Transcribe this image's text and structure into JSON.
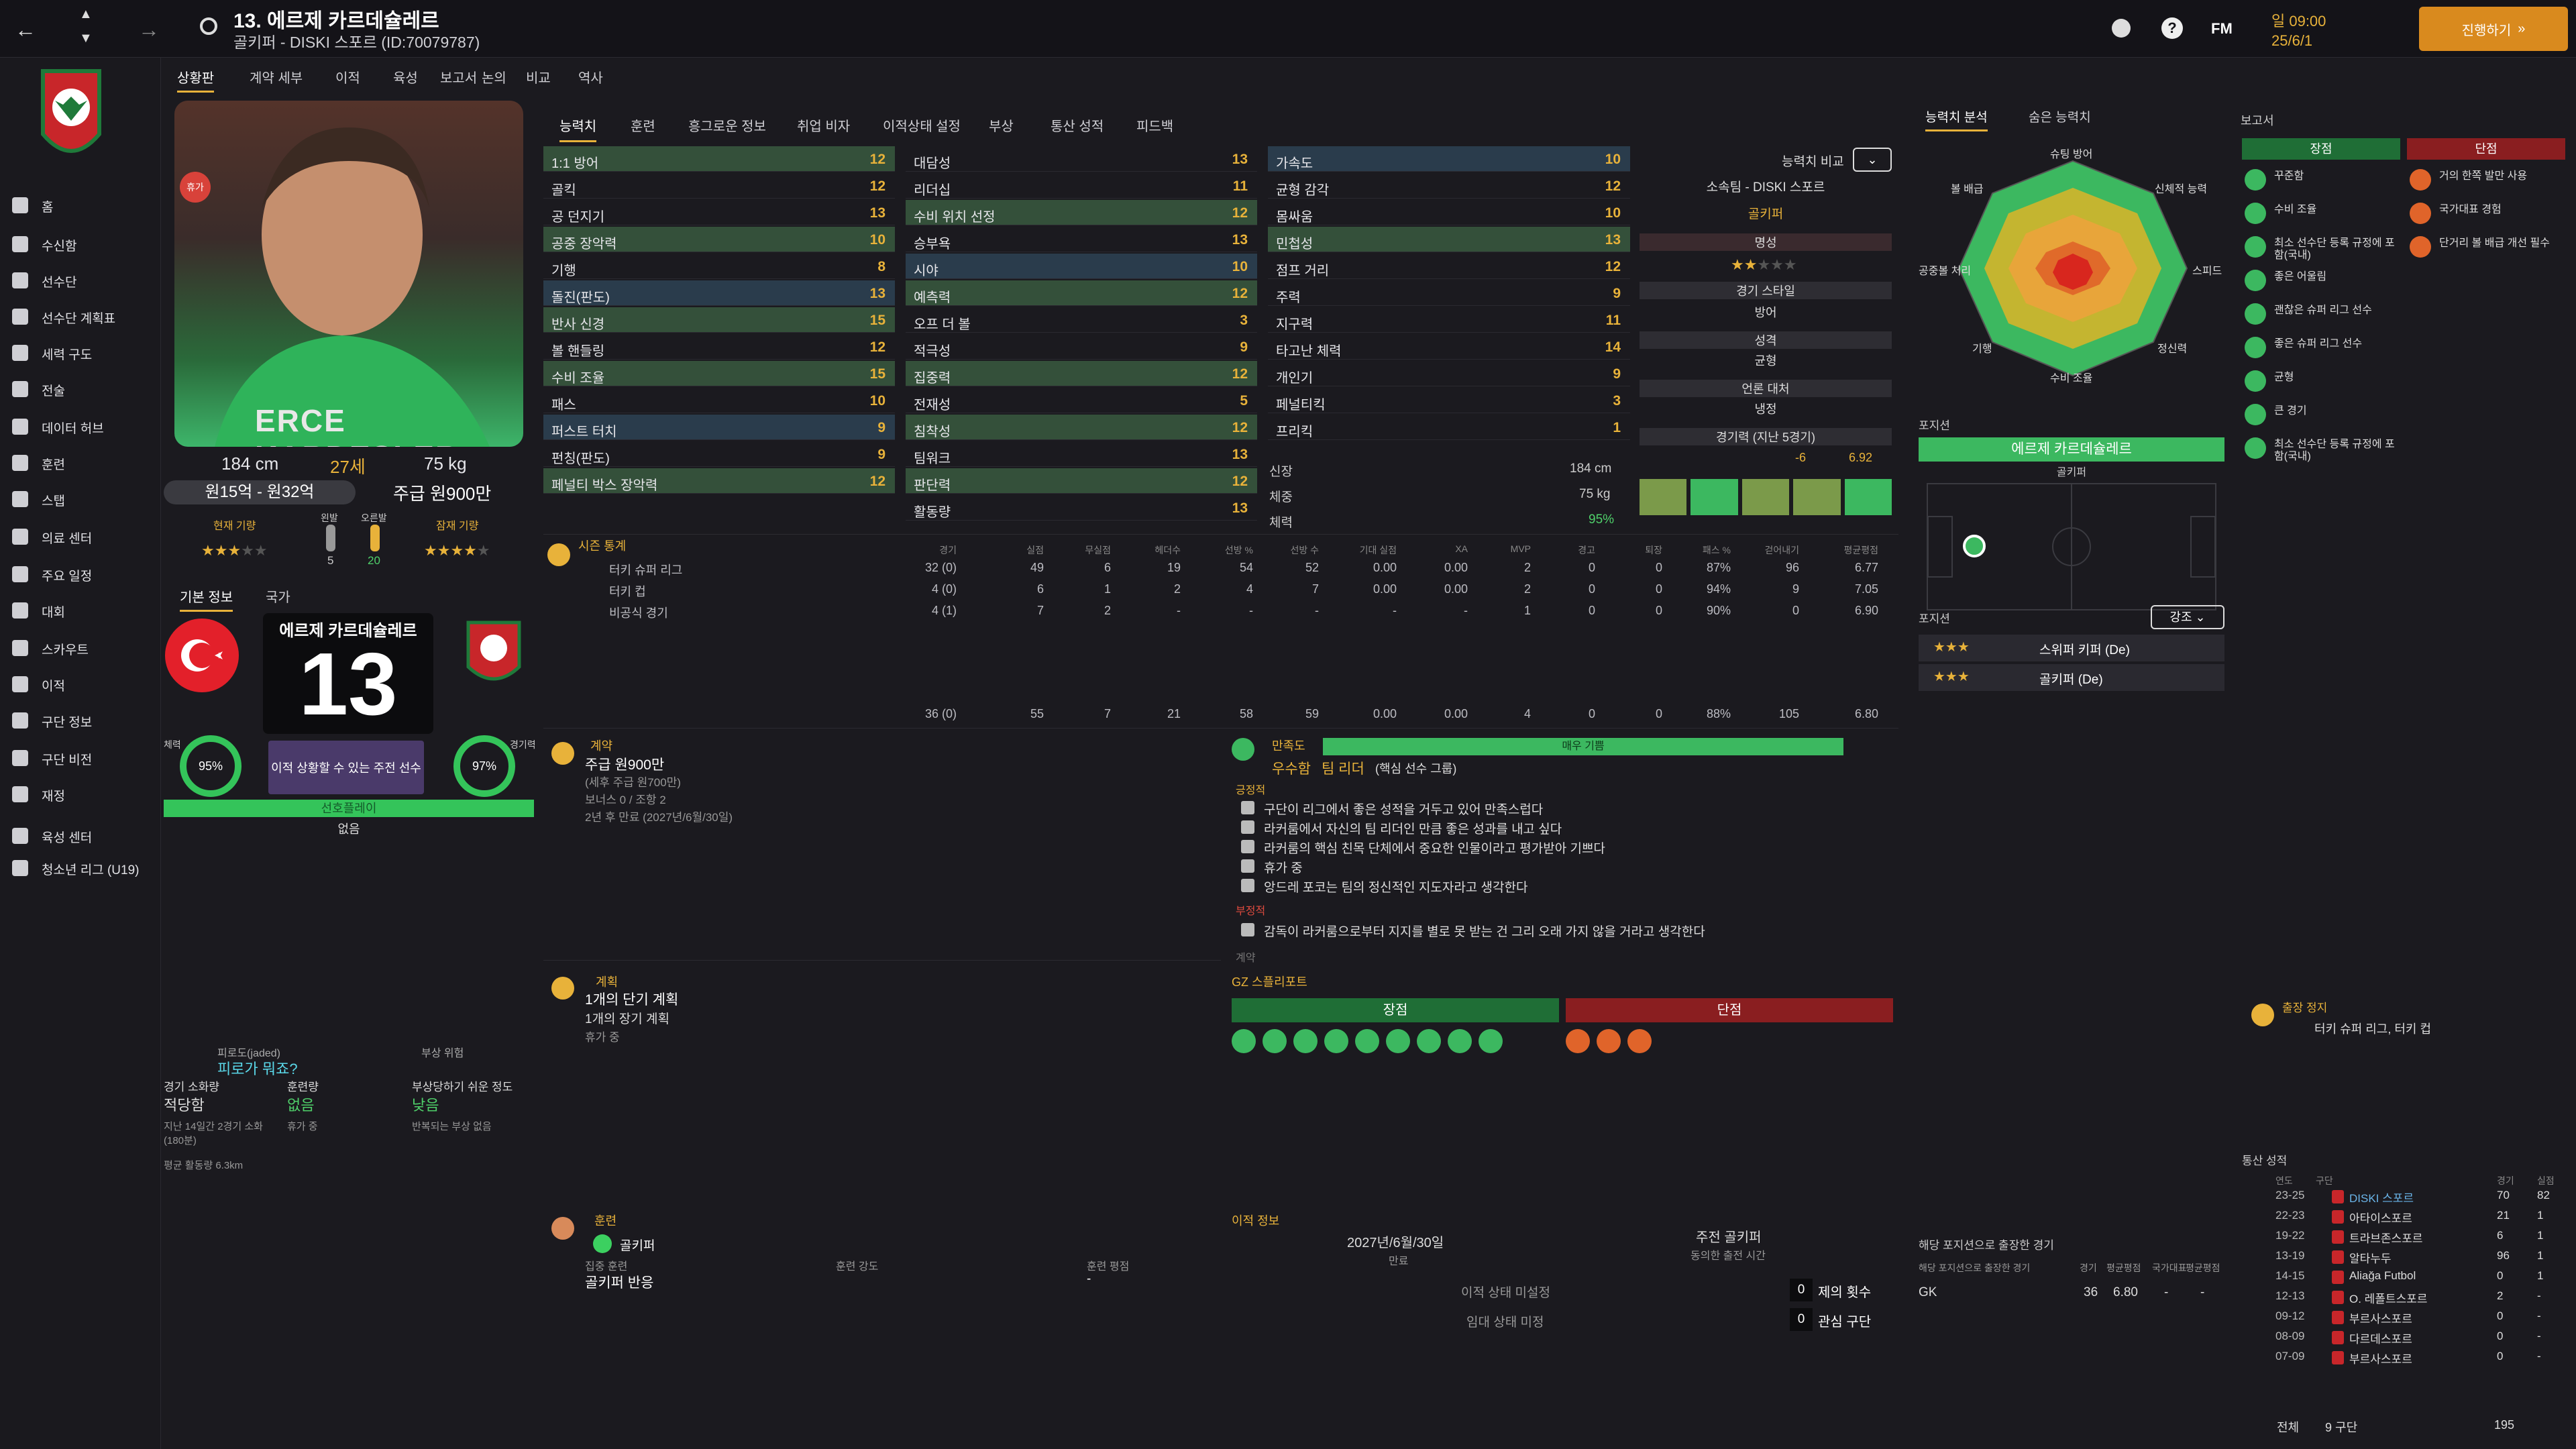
{
  "topbar": {
    "player_title": "13. 에르제 카르데슐레르",
    "player_sub": "골키퍼 - DISKI 스포르 (ID:70079787)",
    "day": "일 09:00",
    "date": "25/6/1",
    "continue_label": "진행하기",
    "fm_label": "FM"
  },
  "subnav": [
    "상황판",
    "계약 세부",
    "이적",
    "육성",
    "보고서",
    "논의",
    "비교",
    "역사"
  ],
  "sidebar": [
    "홈",
    "수신함",
    "선수단",
    "선수단 계획표",
    "세력 구도",
    "전술",
    "데이터 허브",
    "훈련",
    "스탭",
    "의료 센터",
    "주요 일정",
    "대회",
    "스카우트",
    "이적",
    "구단 정보",
    "구단 비전",
    "재정",
    "육성 센터",
    "청소년 리그 (U19)"
  ],
  "profile": {
    "kit_name": "ERCE KARDESLER",
    "height": "184 cm",
    "age": "27세",
    "weight": "75 kg",
    "value": "원15억 - 원32억",
    "wage": "주급 원900만",
    "current_ability_label": "현재 기량",
    "foot_left_label": "왼발",
    "foot_right_label": "오른발",
    "foot_left_val": "5",
    "foot_right_val": "20",
    "potential_label": "잠재 기량",
    "injury_badge": "휴가",
    "tab_basic": "기본 정보",
    "tab_nation": "국가",
    "number_name": "에르제 카르데슐레르",
    "shirt_number": "13",
    "fitness_label": "체력",
    "fitness_val": "95%",
    "sharpness_label": "경기력",
    "sharpness_val": "97%",
    "selection_text": "이적 상황할 수 있는 주전 선수",
    "rotation_label": "선호플레이",
    "rotation_val": "없음"
  },
  "fatigue": {
    "fatigue_label": "피로도(jaded)",
    "fatigue_val": "피로가 뭐죠?",
    "injury_risk_label": "부상 위험",
    "match_load_label": "경기 소화량",
    "match_load_val": "적당함",
    "training_load_label": "훈련량",
    "training_load_val": "없음",
    "injury_prone_label": "부상당하기 쉬운 정도",
    "injury_prone_val": "낮음",
    "match_load_note": "지난 14일간 2경기 소화(180분)",
    "training_load_note": "휴가 중",
    "injury_note": "반복되는 부상 없음",
    "distance_note": "평균 활동량 6.3km"
  },
  "main_tabs": [
    "능력치",
    "훈련",
    "흥그로운 정보",
    "취업 비자",
    "이적상태 설정",
    "부상",
    "통산 성적",
    "피드백"
  ],
  "attributes": {
    "col1": [
      {
        "name": "1:1 방어",
        "val": "12",
        "hl": "hl"
      },
      {
        "name": "골킥",
        "val": "12",
        "hl": ""
      },
      {
        "name": "공 던지기",
        "val": "13",
        "hl": ""
      },
      {
        "name": "공중 장악력",
        "val": "10",
        "hl": "hl"
      },
      {
        "name": "기행",
        "val": "8",
        "hl": ""
      },
      {
        "name": "돌진(판도)",
        "val": "13",
        "hl": "hl2"
      },
      {
        "name": "반사 신경",
        "val": "15",
        "hl": "hl"
      },
      {
        "name": "볼 핸들링",
        "val": "12",
        "hl": ""
      },
      {
        "name": "수비 조율",
        "val": "15",
        "hl": "hl"
      },
      {
        "name": "패스",
        "val": "10",
        "hl": ""
      },
      {
        "name": "퍼스트 터치",
        "val": "9",
        "hl": "hl2"
      },
      {
        "name": "펀칭(판도)",
        "val": "9",
        "hl": ""
      },
      {
        "name": "페널티 박스 장악력",
        "val": "12",
        "hl": "hl"
      }
    ],
    "col2": [
      {
        "name": "대담성",
        "val": "13",
        "hl": ""
      },
      {
        "name": "리더십",
        "val": "11",
        "hl": ""
      },
      {
        "name": "수비 위치 선정",
        "val": "12",
        "hl": "hl"
      },
      {
        "name": "승부욕",
        "val": "13",
        "hl": ""
      },
      {
        "name": "시야",
        "val": "10",
        "hl": "hl2"
      },
      {
        "name": "예측력",
        "val": "12",
        "hl": "hl"
      },
      {
        "name": "오프 더 볼",
        "val": "3",
        "hl": ""
      },
      {
        "name": "적극성",
        "val": "9",
        "hl": ""
      },
      {
        "name": "집중력",
        "val": "12",
        "hl": "hl"
      },
      {
        "name": "전재성",
        "val": "5",
        "hl": ""
      },
      {
        "name": "침착성",
        "val": "12",
        "hl": "hl"
      },
      {
        "name": "팀워크",
        "val": "13",
        "hl": ""
      },
      {
        "name": "판단력",
        "val": "12",
        "hl": "hl"
      },
      {
        "name": "활동량",
        "val": "13",
        "hl": ""
      }
    ],
    "col3": [
      {
        "name": "가속도",
        "val": "10",
        "hl": "hl2"
      },
      {
        "name": "균형 감각",
        "val": "12",
        "hl": ""
      },
      {
        "name": "몸싸움",
        "val": "10",
        "hl": ""
      },
      {
        "name": "민첩성",
        "val": "13",
        "hl": "hl"
      },
      {
        "name": "점프 거리",
        "val": "12",
        "hl": ""
      },
      {
        "name": "주력",
        "val": "9",
        "hl": ""
      },
      {
        "name": "지구력",
        "val": "11",
        "hl": ""
      },
      {
        "name": "타고난 체력",
        "val": "14",
        "hl": ""
      },
      {
        "name": "개인기",
        "val": "9",
        "hl": ""
      },
      {
        "name": "페널티킥",
        "val": "3",
        "hl": ""
      },
      {
        "name": "프리킥",
        "val": "1",
        "hl": ""
      }
    ],
    "height_label": "신장",
    "height_val": "184 cm",
    "weight_label": "체중",
    "weight_val": "75 kg",
    "fitness_label": "체력",
    "fitness_val": "95%"
  },
  "compare": {
    "title": "능력치 비교",
    "club": "소속팀 - DISKI 스포르",
    "position": "골키퍼",
    "fame_label": "명성",
    "style_label": "경기 스타일",
    "style_val": "방어",
    "personality_label": "성격",
    "personality_val": "균형",
    "media_label": "언론 대처",
    "media_val": "냉정",
    "form_label": "경기력 (지난 5경기)",
    "rating_a": "-6",
    "rating_b": "6.92"
  },
  "season": {
    "title": "시즌 통계",
    "headers": [
      "경기",
      "실점",
      "무실점",
      "헤더수",
      "선방 %",
      "선방 수",
      "기대 실점",
      "XA",
      "MVP",
      "경고",
      "퇴장",
      "패스 %",
      "걷어내기",
      "평균평점"
    ],
    "rows": [
      {
        "name": "터키 슈퍼 리그",
        "vals": [
          "32 (0)",
          "49",
          "6",
          "19",
          "54",
          "52",
          "0.00",
          "0.00",
          "2",
          "0",
          "0",
          "87%",
          "96",
          "6.77"
        ]
      },
      {
        "name": "터키 컵",
        "vals": [
          "4 (0)",
          "6",
          "1",
          "2",
          "4",
          "7",
          "0.00",
          "0.00",
          "2",
          "0",
          "0",
          "94%",
          "9",
          "7.05"
        ]
      },
      {
        "name": "비공식 경기",
        "vals": [
          "4 (1)",
          "7",
          "2",
          "-",
          "-",
          "-",
          "-",
          "-",
          "1",
          "0",
          "0",
          "90%",
          "0",
          "6.90"
        ]
      }
    ],
    "total": [
      "36 (0)",
      "55",
      "7",
      "21",
      "58",
      "59",
      "0.00",
      "0.00",
      "4",
      "0",
      "0",
      "88%",
      "105",
      "6.80"
    ]
  },
  "contract": {
    "title": "계약",
    "wage": "주급 원900만",
    "wage_note": "(세후 주급 원700만)",
    "bonus": "보너스 0 / 조항 2",
    "expiry": "2년 후 만료 (2027년/6월/30일)"
  },
  "happiness": {
    "title": "만족도",
    "level": "매우 기쁨",
    "status": "우수함",
    "role": "팀 리더",
    "role_note": "(핵심 선수 그룹)",
    "pos_label": "긍정적",
    "positives": [
      "구단이 리그에서 좋은 성적을 거두고 있어 만족스럽다",
      "라커룸에서 자신의 팀 리더인 만큼 좋은 성과를 내고 싶다",
      "라커룸의 핵심 친목 단체에서 중요한 인물이라고 평가받아 기쁘다",
      "휴가 중",
      "앙드레 포코는 팀의 정신적인 지도자라고 생각한다"
    ],
    "neg_label": "부정적",
    "negatives": [
      "감독이 라커룸으로부터 지지를 별로 못 받는 건 그리 오래 가지 않을 거라고 생각한다"
    ],
    "extra": "계약"
  },
  "plans": {
    "title": "계획",
    "short": "1개의 단기 계획",
    "long": "1개의 장기 계획",
    "note": "휴가 중"
  },
  "gz": {
    "title": "GZ 스플리포트",
    "pros_label": "장점",
    "cons_label": "단점"
  },
  "training": {
    "title": "훈련",
    "role": "골키퍼",
    "unit_label": "집중 훈련",
    "unit_val": "골키퍼 반응",
    "intensity_label": "훈련 강도",
    "rating_label": "훈련 평점",
    "rating_val": "-"
  },
  "transfer": {
    "title": "이적 정보",
    "expiry": "2027년/6월/30일",
    "expiry_label": "만료",
    "role": "주전 골키퍼",
    "role_note": "동의한 출전 시간",
    "status_a": "이적 상태 미설정",
    "status_b": "임대 상태 미정",
    "offers_label": "제의 횟수",
    "offers_val": "0",
    "interest_label": "관심 구단",
    "interest_val": "0"
  },
  "right": {
    "tab_analysis": "능력치 분석",
    "tab_hidden": "숨은 능력치",
    "radar_labels": [
      "슈팅 방어",
      "신체적 능력",
      "스피드",
      "정신력",
      "수비 조율",
      "기행",
      "공중볼 처리",
      "볼 배급"
    ],
    "position_title": "포지션",
    "position_name": "에르제 카르데슐레르",
    "position_role": "골키퍼",
    "roles_title": "포지션",
    "roles_btn": "강조",
    "roles": [
      "스위퍼 키퍼 (De)",
      "골키퍼 (De)"
    ],
    "played_title": "해당 포지션으로 출장한 경기",
    "played_header": [
      "해당 포지션으로 출장한 경기",
      "경기",
      "평균평점",
      "국가대표",
      "평균평점"
    ],
    "played_row": [
      "GK",
      "36",
      "6.80",
      "-",
      "-"
    ]
  },
  "report": {
    "title": "보고서",
    "pros_label": "장점",
    "cons_label": "단점",
    "pros": [
      "꾸준함",
      "수비 조율",
      "최소 선수단 등록 규정에 포함(국내)",
      "좋은 어울림",
      "괜찮은 슈퍼 리그 선수",
      "좋은 슈퍼 리그 선수",
      "균형",
      "큰 경기",
      "최소 선수단 등록 규정에 포함(국내)"
    ],
    "cons": [
      "거의 한쪽 발만 사용",
      "국가대표 경험",
      "단거리 볼 배급 개선 필수"
    ],
    "suspension_title": "출장 정지",
    "suspension_val": "터키 슈퍼 리그, 터키 컵"
  },
  "career": {
    "title": "통산 성적",
    "headers": [
      "연도",
      "구단",
      "경기",
      "실점"
    ],
    "rows": [
      [
        "23-25",
        "DISKI 스포르",
        "70",
        "82"
      ],
      [
        "22-23",
        "아타이스포르",
        "21",
        "1"
      ],
      [
        "19-22",
        "트라브존스포르",
        "6",
        "1"
      ],
      [
        "13-19",
        "알타누두",
        "96",
        "1"
      ],
      [
        "14-15",
        "Aliağa Futbol",
        "0",
        "1"
      ],
      [
        "12-13",
        "O. 레폴트스포르",
        "2",
        "-"
      ],
      [
        "09-12",
        "부르사스포르",
        "0",
        "-"
      ],
      [
        "08-09",
        "다르데스포르",
        "0",
        "-"
      ],
      [
        "07-09",
        "부르사스포르",
        "0",
        "-"
      ]
    ],
    "total_label": "전체",
    "total_clubs": "9 구단",
    "total_apps": "195"
  }
}
